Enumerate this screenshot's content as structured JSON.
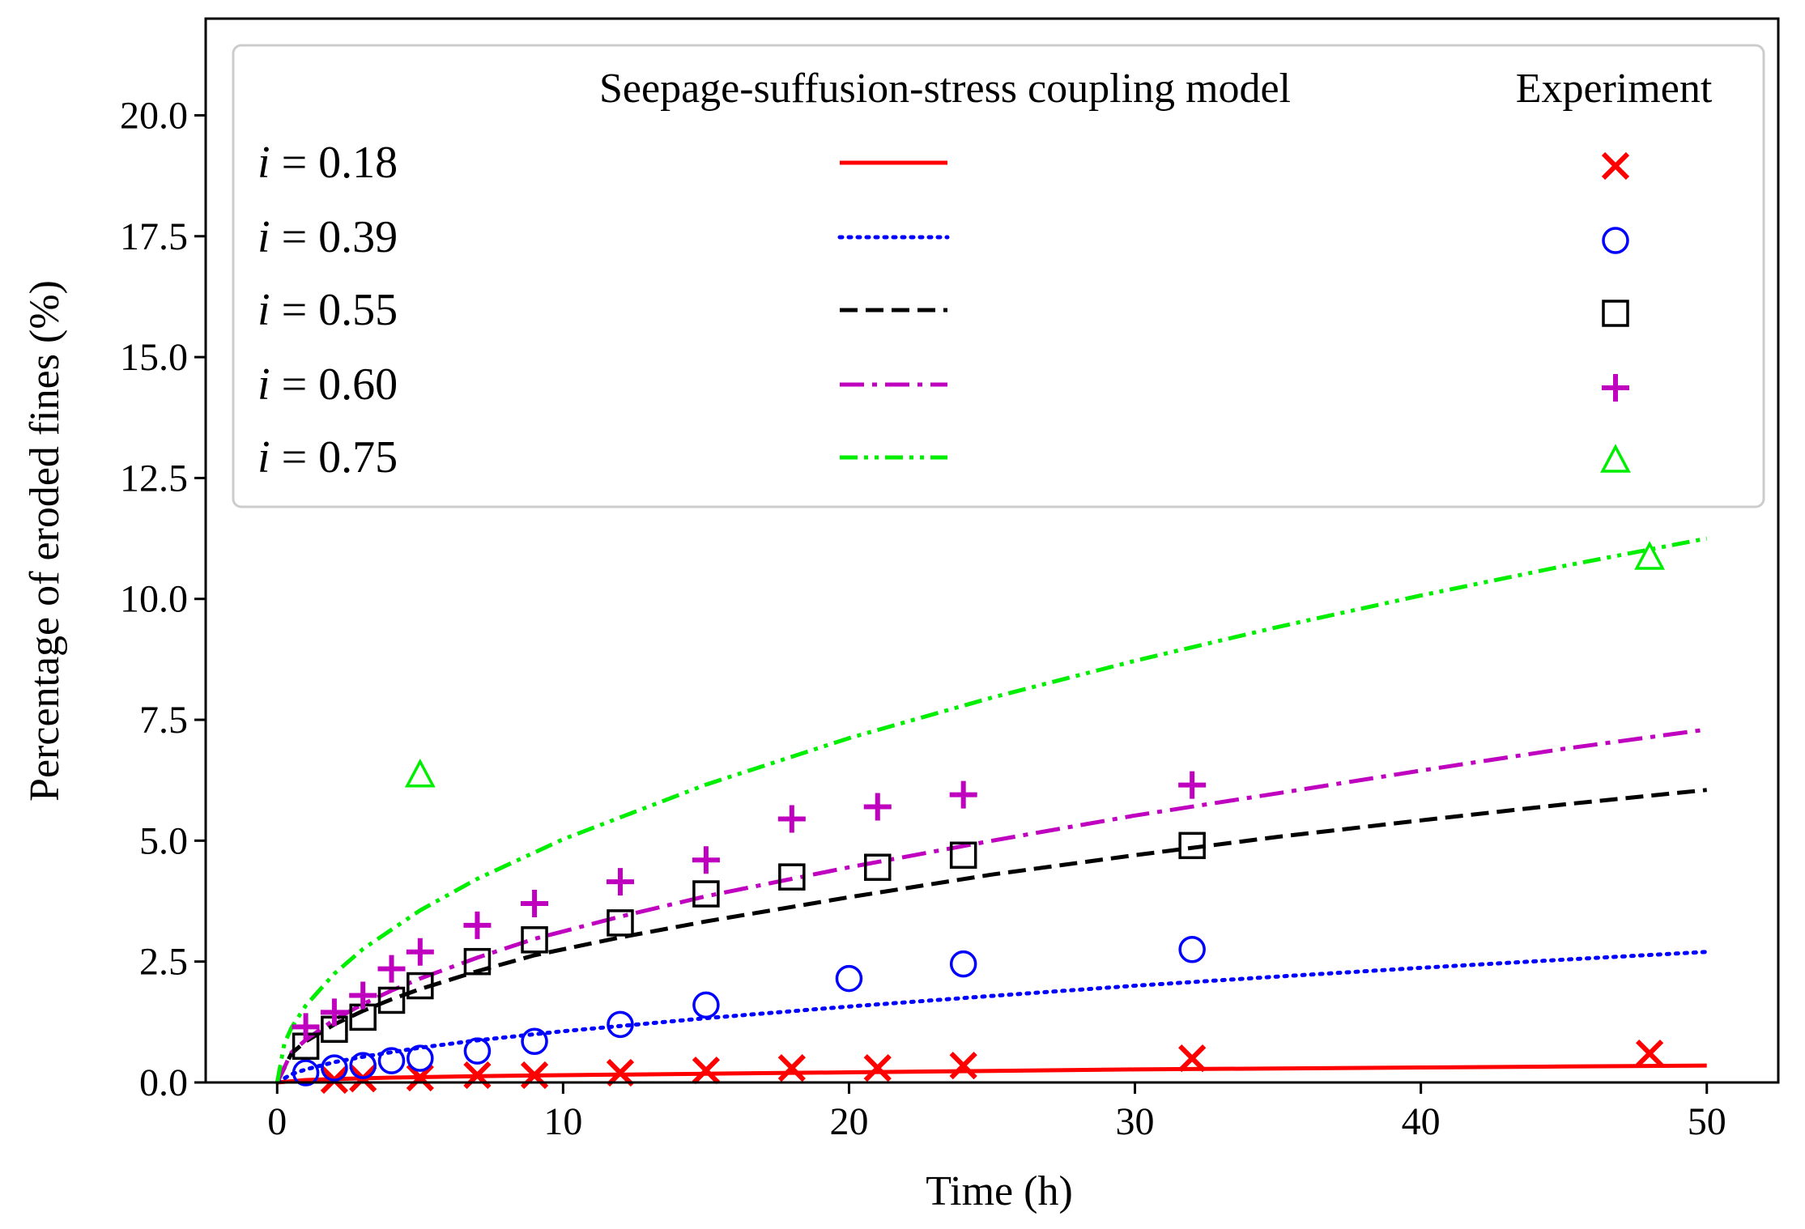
{
  "chart_data": {
    "type": "line",
    "title": "",
    "xlabel": "Time (h)",
    "ylabel": "Percentage of eroded fines (%)",
    "xlim": [
      -2.5,
      52.5
    ],
    "ylim": [
      0,
      22
    ],
    "x_ticks": [
      0,
      10,
      20,
      30,
      40,
      50
    ],
    "y_ticks": [
      0.0,
      2.5,
      5.0,
      7.5,
      10.0,
      12.5,
      15.0,
      17.5,
      20.0
    ],
    "x_tick_labels": [
      "0",
      "10",
      "20",
      "30",
      "40",
      "50"
    ],
    "y_tick_labels": [
      "0.0",
      "2.5",
      "5.0",
      "7.5",
      "10.0",
      "12.5",
      "15.0",
      "17.5",
      "20.0"
    ],
    "grid": false,
    "legend": {
      "position": "top",
      "model_header": "Seepage-suffusion-stress coupling model",
      "experiment_header": "Experiment",
      "symbol": "i",
      "equals": " = "
    },
    "series": [
      {
        "name": "i = 0.18",
        "gradient": "0.18",
        "color": "#ff0000",
        "dash": "solid",
        "marker": "x",
        "model": {
          "x": [
            0,
            1,
            2,
            4,
            7,
            10,
            15,
            20,
            25,
            30,
            35,
            40,
            45,
            50
          ],
          "y": [
            0,
            0.05,
            0.07,
            0.1,
            0.13,
            0.15,
            0.18,
            0.21,
            0.24,
            0.27,
            0.29,
            0.31,
            0.33,
            0.35
          ]
        },
        "experiment": {
          "x": [
            2,
            3,
            5,
            7,
            9,
            12,
            15,
            18,
            21,
            24,
            32,
            48
          ],
          "y": [
            0.05,
            0.08,
            0.1,
            0.15,
            0.15,
            0.2,
            0.25,
            0.3,
            0.3,
            0.35,
            0.5,
            0.6
          ]
        }
      },
      {
        "name": "i = 0.39",
        "gradient": "0.39",
        "color": "#0000ff",
        "dash": "dotted",
        "marker": "o",
        "model": {
          "x": [
            0,
            0.5,
            1,
            2,
            3,
            5,
            7,
            10,
            15,
            20,
            25,
            30,
            35,
            40,
            45,
            50
          ],
          "y": [
            0,
            0.17,
            0.27,
            0.42,
            0.53,
            0.72,
            0.87,
            1.06,
            1.33,
            1.57,
            1.79,
            2.0,
            2.19,
            2.37,
            2.54,
            2.7
          ]
        },
        "experiment": {
          "x": [
            1,
            2,
            3,
            4,
            5,
            7,
            9,
            12,
            15,
            20,
            24,
            32
          ],
          "y": [
            0.2,
            0.3,
            0.35,
            0.45,
            0.5,
            0.65,
            0.85,
            1.2,
            1.6,
            2.15,
            2.45,
            2.75
          ]
        }
      },
      {
        "name": "i = 0.55",
        "gradient": "0.55",
        "color": "#000000",
        "dash": "dashed",
        "marker": "s",
        "model": {
          "x": [
            0,
            0.5,
            1,
            2,
            3,
            4,
            5,
            7,
            9,
            12,
            15,
            20,
            25,
            30,
            35,
            40,
            45,
            50
          ],
          "y": [
            0,
            0.6,
            0.85,
            1.2,
            1.48,
            1.72,
            1.93,
            2.3,
            2.63,
            3.0,
            3.33,
            3.83,
            4.3,
            4.7,
            5.08,
            5.42,
            5.75,
            6.05
          ]
        },
        "experiment": {
          "x": [
            1,
            2,
            3,
            4,
            5,
            7,
            9,
            12,
            15,
            18,
            21,
            24,
            32
          ],
          "y": [
            0.75,
            1.1,
            1.35,
            1.7,
            2.0,
            2.5,
            2.95,
            3.3,
            3.9,
            4.25,
            4.45,
            4.7,
            4.9
          ]
        }
      },
      {
        "name": "i = 0.60",
        "gradient": "0.60",
        "color": "#bf00bf",
        "dash": "dashdot",
        "marker": "+",
        "model": {
          "x": [
            0,
            0.5,
            1,
            2,
            3,
            4,
            5,
            7,
            9,
            12,
            15,
            20,
            25,
            30,
            35,
            40,
            45,
            50
          ],
          "y": [
            0,
            0.62,
            0.88,
            1.3,
            1.62,
            1.9,
            2.15,
            2.58,
            2.97,
            3.43,
            3.85,
            4.45,
            5.0,
            5.52,
            5.98,
            6.45,
            6.9,
            7.3
          ]
        },
        "experiment": {
          "x": [
            1,
            2,
            3,
            4,
            5,
            7,
            9,
            12,
            15,
            18,
            21,
            24,
            32
          ],
          "y": [
            1.15,
            1.45,
            1.8,
            2.35,
            2.7,
            3.25,
            3.7,
            4.15,
            4.6,
            5.45,
            5.7,
            5.95,
            6.15
          ]
        }
      },
      {
        "name": "i = 0.75",
        "gradient": "0.75",
        "color": "#00ee00",
        "dash": "dashdotdot",
        "marker": "^",
        "model": {
          "x": [
            0,
            0.25,
            0.5,
            1,
            2,
            3,
            5,
            7,
            10,
            15,
            20,
            25,
            30,
            35,
            40,
            45,
            50
          ],
          "y": [
            0,
            0.8,
            1.13,
            1.59,
            2.25,
            2.76,
            3.56,
            4.21,
            5.03,
            6.16,
            7.12,
            7.96,
            8.72,
            9.42,
            10.07,
            10.68,
            11.25
          ]
        },
        "experiment": {
          "x": [
            5,
            48
          ],
          "y": [
            6.35,
            10.85
          ]
        }
      }
    ]
  }
}
